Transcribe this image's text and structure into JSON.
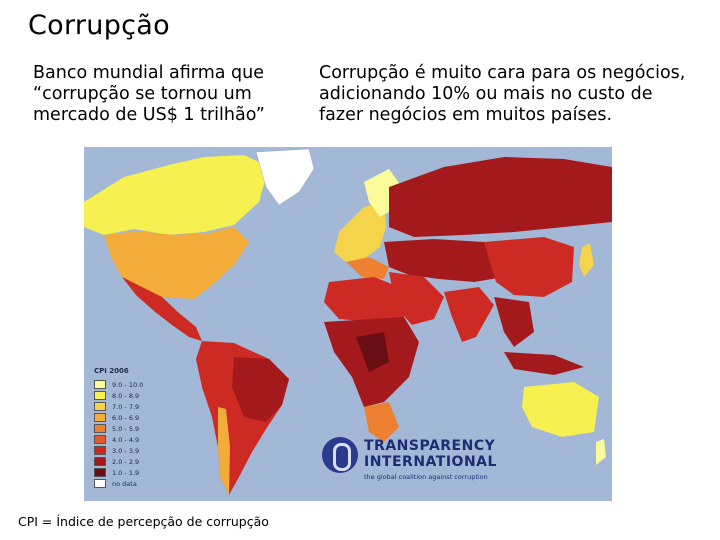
{
  "slide": {
    "title": "Corrupção",
    "left_text": "Banco mundial afirma que\n“corrupção se tornou um\nmercado de US$ 1 trilhão”",
    "right_text": "Corrupção é muito cara para os negócios,\nadicionando 10% ou mais no custo de\nfazer negócios em muitos países.",
    "caption": "CPI = Índice de percepção de corrupção"
  },
  "map": {
    "legend_title": "CPI 2006",
    "legend": [
      {
        "label": "9.0 - 10.0",
        "color": "#fbfb9a"
      },
      {
        "label": "8.0 - 8.9",
        "color": "#f6f050"
      },
      {
        "label": "7.0 - 7.9",
        "color": "#f5d34a"
      },
      {
        "label": "6.0 - 6.9",
        "color": "#f3ab3a"
      },
      {
        "label": "5.0 - 5.9",
        "color": "#ee8131"
      },
      {
        "label": "4.0 - 4.9",
        "color": "#e35a2c"
      },
      {
        "label": "3.0 - 3.9",
        "color": "#cc2a23"
      },
      {
        "label": "2.0 - 2.9",
        "color": "#a41a1c"
      },
      {
        "label": "1.0 - 1.9",
        "color": "#6a0e15"
      },
      {
        "label": "no data",
        "color": "#ffffff"
      }
    ],
    "logo_line1": "TRANSPARENCY",
    "logo_line2": "INTERNATIONAL",
    "logo_tagline": "the global coalition against corruption",
    "ocean_color": "#a3b8d7"
  }
}
